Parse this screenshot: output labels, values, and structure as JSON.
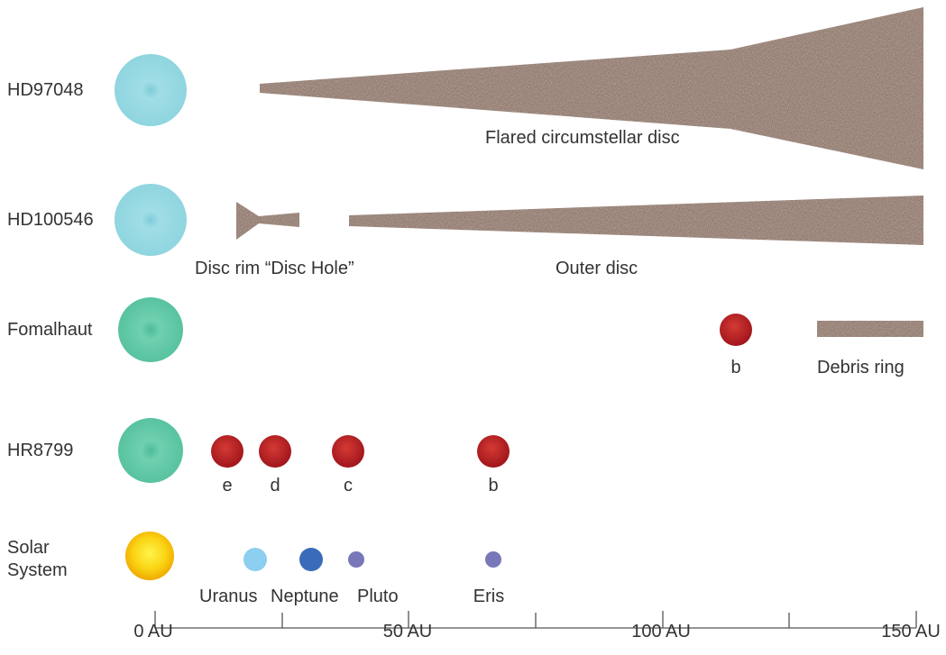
{
  "rows": [
    {
      "name": "HD97048"
    },
    {
      "name": "HD100546"
    },
    {
      "name": "Fomalhaut"
    },
    {
      "name": "HR8799"
    },
    {
      "name": "Solar System",
      "name_line1": "Solar",
      "name_line2": "System"
    }
  ],
  "labels": {
    "hd97048_disc": "Flared circumstellar disc",
    "hd100546_rim": "Disc rim “Disc Hole”",
    "hd100546_outer": "Outer disc",
    "fomalhaut_planet": "b",
    "fomalhaut_ring": "Debris ring",
    "hr8799_planets": [
      "e",
      "d",
      "c",
      "b"
    ],
    "solar_bodies": [
      "Uranus",
      "Neptune",
      "Pluto",
      "Eris"
    ]
  },
  "axis": {
    "unit": "AU",
    "range": [
      0,
      150
    ],
    "tick_labels": [
      "0 AU",
      "50 AU",
      "100 AU",
      "150 AU"
    ]
  },
  "colors": {
    "star_blue": "#8fd5df",
    "star_green": "#5ec4a4",
    "sun": "#f7c600",
    "planet_red": "#b01e22",
    "uranus": "#8ccff0",
    "neptune": "#3a6bb8",
    "dwarf": "#7878b8",
    "disc": "#8a7167",
    "text": "#333333"
  },
  "positions_au": {
    "hr8799_planets": [
      14.5,
      24,
      38,
      67
    ],
    "fomalhaut_b": 115,
    "solar_bodies": [
      20,
      31,
      39,
      67
    ]
  }
}
